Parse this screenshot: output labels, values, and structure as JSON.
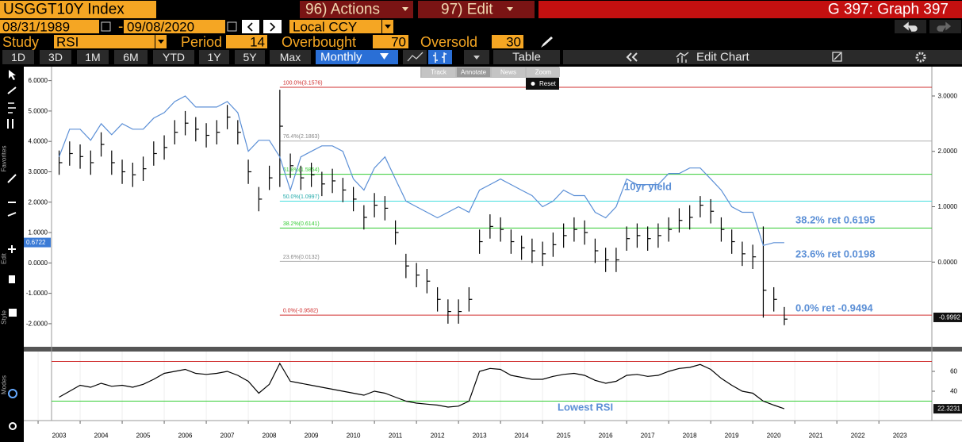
{
  "header": {
    "ticker": "USGGT10Y Index",
    "actions": "96) Actions",
    "edit": "97) Edit",
    "graph": "G 397: Graph 397",
    "start_date": "08/31/1989",
    "date_sep": "-",
    "end_date": "09/08/2020",
    "currency": "Local CCY",
    "study_label": "Study",
    "study": "RSI",
    "period_label": "Period",
    "period": 14,
    "overbought_label": "Overbought",
    "overbought": 70,
    "oversold_label": "Oversold",
    "oversold": 30,
    "ranges": [
      "1D",
      "3D",
      "1M",
      "6M",
      "YTD",
      "1Y",
      "5Y",
      "Max"
    ],
    "frequency": "Monthly",
    "table": "Table",
    "edit_chart": "Edit Chart",
    "mini_toolbar": [
      "Track",
      "Annotate",
      "News",
      "Zoom"
    ],
    "reset": "Reset",
    "sidebar": [
      "Favorites",
      "Edit",
      "Style",
      "Modes"
    ]
  },
  "chart_data": {
    "type": "ohlc",
    "x": [
      2003.5,
      2003.75,
      2004,
      2004.25,
      2004.5,
      2004.75,
      2005,
      2005.25,
      2005.5,
      2005.75,
      2006,
      2006.25,
      2006.5,
      2006.75,
      2007,
      2007.25,
      2007.5,
      2007.75,
      2008,
      2008.25,
      2008.5,
      2008.75,
      2009,
      2009.25,
      2009.5,
      2009.75,
      2010,
      2010.25,
      2010.5,
      2010.75,
      2011,
      2011.25,
      2011.5,
      2011.75,
      2012,
      2012.25,
      2012.5,
      2012.75,
      2013,
      2013.25,
      2013.5,
      2013.75,
      2014,
      2014.25,
      2014.5,
      2014.75,
      2015,
      2015.25,
      2015.5,
      2015.75,
      2016,
      2016.25,
      2016.5,
      2016.75,
      2017,
      2017.25,
      2017.5,
      2017.75,
      2018,
      2018.25,
      2018.5,
      2018.75,
      2019,
      2019.25,
      2019.5,
      2019.75,
      2020,
      2020.25,
      2020.5,
      2020.75
    ],
    "series": [
      {
        "type": "ohlc",
        "color": "#000000",
        "values": [
          3.3,
          3.6,
          3.5,
          3.3,
          3.9,
          3.3,
          3.0,
          2.9,
          3.1,
          3.6,
          3.8,
          4.3,
          4.6,
          4.4,
          4.2,
          4.3,
          4.8,
          4.3,
          3.0,
          2.1,
          2.8,
          4.5,
          3.2,
          2.8,
          2.9,
          2.6,
          2.7,
          2.4,
          2.1,
          1.5,
          1.9,
          1.8,
          1.0,
          -0.1,
          -0.4,
          -0.6,
          -1.2,
          -1.6,
          -1.6,
          -1.2,
          0.7,
          1.2,
          1.1,
          0.7,
          0.5,
          0.4,
          0.3,
          0.6,
          0.9,
          1.1,
          1.0,
          0.4,
          0.1,
          0.1,
          0.8,
          0.9,
          0.8,
          0.9,
          1.1,
          1.4,
          1.5,
          1.9,
          1.7,
          1.1,
          0.7,
          0.3,
          0.2,
          -0.9,
          -1.2,
          -1.85
        ],
        "high": [
          3.7,
          4.0,
          3.9,
          3.7,
          4.3,
          3.7,
          3.4,
          3.3,
          3.5,
          4.0,
          4.2,
          4.7,
          5.0,
          4.8,
          4.6,
          4.7,
          5.2,
          4.7,
          3.4,
          2.5,
          3.2,
          5.7,
          3.6,
          3.2,
          3.3,
          3.0,
          3.1,
          2.8,
          2.5,
          1.9,
          2.3,
          2.2,
          1.4,
          0.3,
          0.0,
          -0.2,
          -0.8,
          -1.2,
          -1.2,
          -0.8,
          1.1,
          1.6,
          1.5,
          1.1,
          0.9,
          0.8,
          0.7,
          1.0,
          1.3,
          1.5,
          1.4,
          0.8,
          0.5,
          0.5,
          1.2,
          1.3,
          1.2,
          1.3,
          1.5,
          1.8,
          1.9,
          2.2,
          2.1,
          1.5,
          1.1,
          0.7,
          0.6,
          1.2,
          -0.8,
          -1.45
        ],
        "low": [
          2.9,
          3.2,
          3.1,
          2.9,
          3.5,
          2.9,
          2.6,
          2.5,
          2.7,
          3.2,
          3.4,
          3.9,
          4.2,
          4.0,
          3.8,
          3.9,
          4.4,
          3.9,
          2.6,
          1.7,
          2.4,
          2.5,
          2.8,
          2.4,
          2.5,
          2.2,
          2.3,
          2.0,
          1.7,
          1.1,
          1.5,
          1.4,
          0.6,
          -0.5,
          -0.8,
          -1.0,
          -1.6,
          -2.0,
          -2.0,
          -1.6,
          0.3,
          0.8,
          0.7,
          0.3,
          0.1,
          0.0,
          -0.1,
          0.2,
          0.5,
          0.7,
          0.6,
          0.0,
          -0.3,
          -0.3,
          0.4,
          0.5,
          0.4,
          0.5,
          0.7,
          1.0,
          1.1,
          1.5,
          1.3,
          0.7,
          0.3,
          -0.1,
          -0.2,
          -1.8,
          -1.6,
          -2.05
        ]
      },
      {
        "type": "line",
        "axis": "y2",
        "color": "#5b8fd6",
        "values": [
          1.9,
          2.4,
          2.4,
          2.2,
          2.5,
          2.3,
          2.5,
          2.4,
          2.4,
          2.6,
          2.7,
          2.9,
          3.0,
          2.8,
          2.8,
          2.8,
          2.9,
          2.7,
          2.0,
          2.2,
          2.2,
          1.9,
          1.3,
          1.9,
          2.0,
          2.1,
          2.1,
          2.0,
          1.5,
          1.3,
          1.7,
          1.9,
          1.5,
          1.1,
          1.0,
          0.9,
          0.8,
          0.9,
          1.0,
          0.9,
          1.3,
          1.4,
          1.5,
          1.4,
          1.3,
          1.2,
          1.0,
          1.1,
          1.3,
          1.2,
          1.2,
          0.9,
          0.8,
          1.0,
          1.5,
          1.4,
          1.4,
          1.4,
          1.6,
          1.6,
          1.7,
          1.7,
          1.5,
          1.3,
          1.0,
          0.9,
          0.9,
          0.3,
          0.35,
          0.35
        ]
      },
      {
        "type": "line",
        "axis": "y3",
        "color": "#000000",
        "values": [
          34,
          40,
          46,
          44,
          48,
          45,
          46,
          44,
          47,
          52,
          58,
          60,
          62,
          58,
          57,
          58,
          60,
          56,
          50,
          38,
          47,
          68,
          50,
          48,
          46,
          44,
          42,
          40,
          38,
          36,
          40,
          38,
          34,
          30,
          28,
          27,
          26,
          24,
          25,
          30,
          60,
          63,
          62,
          56,
          54,
          52,
          52,
          55,
          57,
          58,
          56,
          51,
          48,
          50,
          56,
          57,
          55,
          56,
          60,
          63,
          64,
          67,
          62,
          53,
          46,
          40,
          38,
          30,
          26,
          22.3
        ]
      }
    ],
    "xlim": [
      2003.32,
      2024.26
    ],
    "xticks": [
      2003,
      2004,
      2005,
      2006,
      2007,
      2008,
      2009,
      2010,
      2011,
      2012,
      2013,
      2014,
      2015,
      2016,
      2017,
      2018,
      2019,
      2020,
      2021,
      2022,
      2023
    ],
    "ylim": [
      -2.76,
      6.46
    ],
    "yticks": [
      {
        "value": -2,
        "label": "-2.0000"
      },
      {
        "value": -1,
        "label": "-1.0000"
      },
      {
        "value": 0,
        "label": "0.0000"
      },
      {
        "value": 1,
        "label": "1.0000"
      },
      {
        "value": 2,
        "label": "2.0000"
      },
      {
        "value": 3,
        "label": "3.0000"
      },
      {
        "value": 4,
        "label": "4.0000"
      },
      {
        "value": 5,
        "label": "5.0000"
      },
      {
        "value": 6,
        "label": "6.0000"
      }
    ],
    "y2lim": [
      -1.53,
      3.53
    ],
    "y2ticks": [
      {
        "value": 0,
        "label": "0.0000"
      },
      {
        "value": 1,
        "label": "1.0000"
      },
      {
        "value": 2,
        "label": "2.0000"
      },
      {
        "value": 3,
        "label": "3.0000"
      }
    ],
    "y3lim": [
      10.4,
      80
    ],
    "y3ticks": [
      40,
      60
    ],
    "levels": [
      {
        "label": "100.0%(3.1576)",
        "value": 3.1576,
        "color": "#d03030"
      },
      {
        "label": "76.4%(2.1863)",
        "value": 2.1863,
        "color": "#b0b0b0"
      },
      {
        "label": "61.8%(1.5854)",
        "value": 1.5854,
        "color": "#33cc33"
      },
      {
        "label": "50.0%(1.0997)",
        "value": 1.0997,
        "color": "#44dddd"
      },
      {
        "label": "38.2%(0.6141)",
        "value": 0.6141,
        "color": "#33cc33"
      },
      {
        "label": "23.6%(0.0132)",
        "value": 0.0132,
        "color": "#b0b0b0"
      },
      {
        "label": "0.0%(-0.9582)",
        "value": -0.9582,
        "color": "#d03030"
      }
    ],
    "last_y": 0.6722,
    "last_y2": -0.9992,
    "last_y3": 22.3231,
    "annotations": [
      "10yr yield",
      "38.2% ret 0.6195",
      "23.6% ret 0.0198",
      "0.0% ret -0.9494",
      "Lowest RSI"
    ]
  }
}
